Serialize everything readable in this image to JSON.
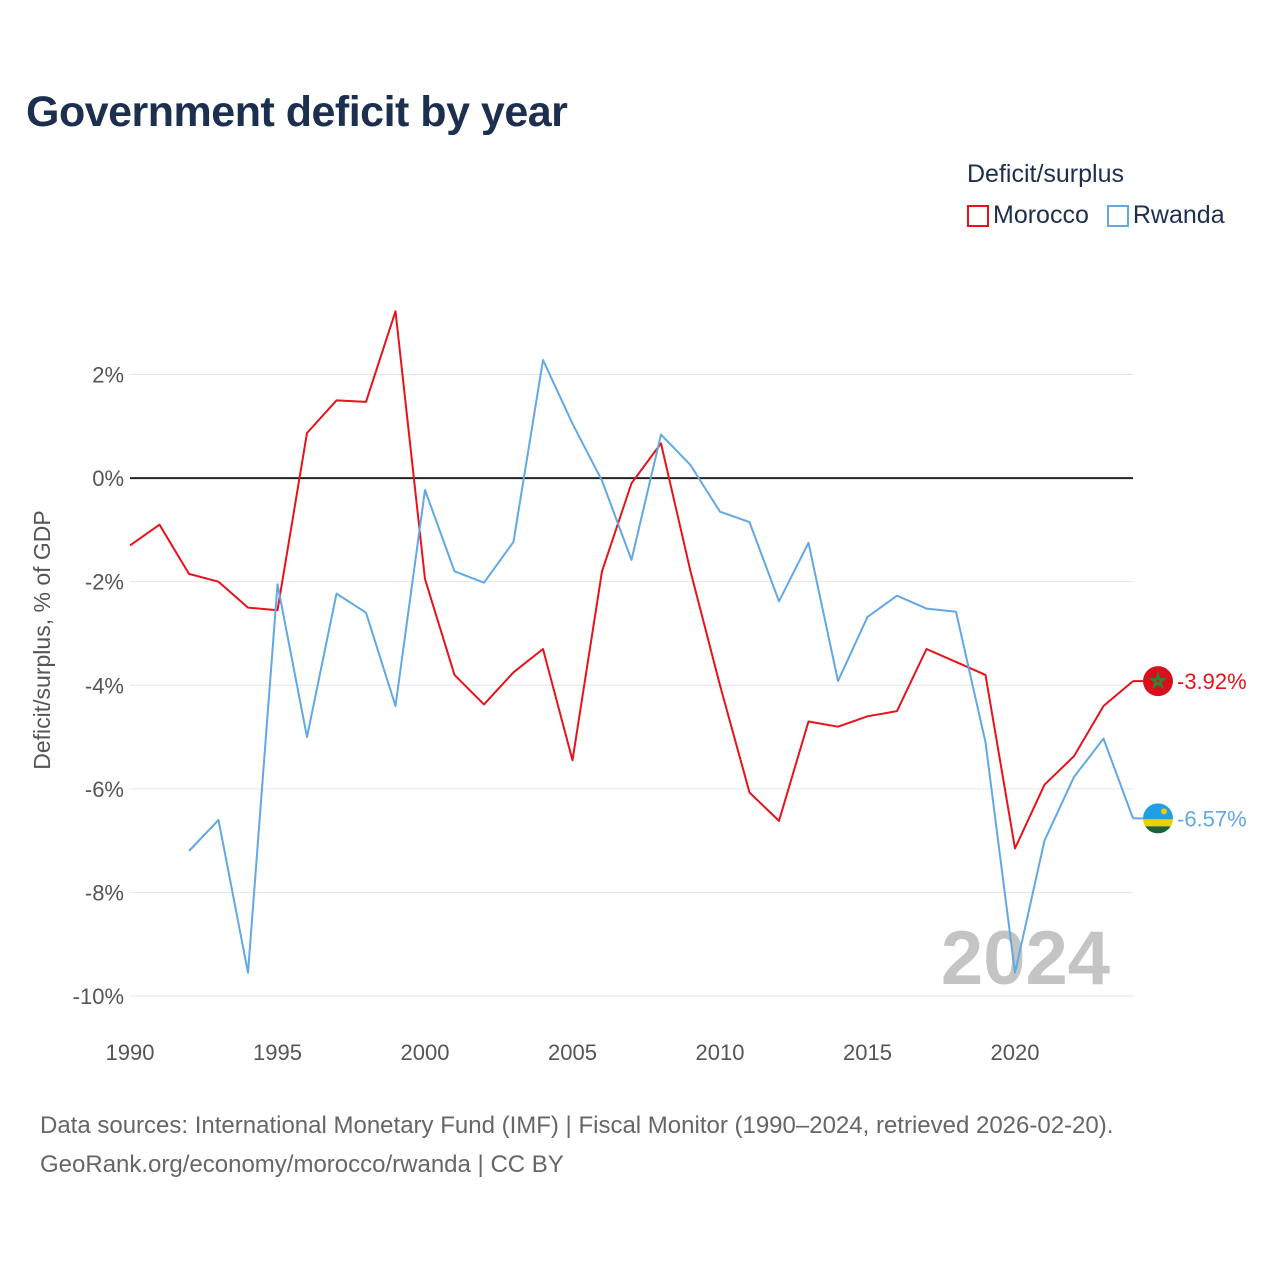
{
  "title": "Government deficit by year",
  "legend": {
    "title": "Deficit/surplus",
    "items": [
      {
        "label": "Morocco",
        "color": "#e8121a"
      },
      {
        "label": "Rwanda",
        "color": "#62a8e5"
      }
    ]
  },
  "footer": {
    "line1": "Data sources: International Monetary Fund (IMF) | Fiscal Monitor (1990–2024, retrieved 2026-02-20).",
    "line2": "GeoRank.org/economy/morocco/rwanda | CC BY"
  },
  "chart_data": {
    "type": "line",
    "title": "Government deficit by year",
    "xlabel": "",
    "ylabel": "Deficit/surplus, % of GDP",
    "xlim": [
      1990,
      2024
    ],
    "ylim": [
      -10,
      2
    ],
    "x_ticks": [
      1990,
      1995,
      2000,
      2005,
      2010,
      2015,
      2020
    ],
    "y_ticks": [
      2,
      0,
      -2,
      -4,
      -6,
      -8,
      -10
    ],
    "y_tick_labels": [
      "2%",
      "0%",
      "-2%",
      "-4%",
      "-6%",
      "-8%",
      "-10%"
    ],
    "year_watermark": "2024",
    "grid": true,
    "series": [
      {
        "name": "Morocco",
        "color": "#e8121a",
        "end_label": "-3.92%",
        "x": [
          1990,
          1991,
          1992,
          1993,
          1994,
          1995,
          1996,
          1997,
          1998,
          1999,
          2000,
          2001,
          2002,
          2003,
          2004,
          2005,
          2006,
          2007,
          2008,
          2009,
          2010,
          2011,
          2012,
          2013,
          2014,
          2015,
          2016,
          2017,
          2018,
          2019,
          2020,
          2021,
          2022,
          2023,
          2024
        ],
        "values": [
          -1.3,
          -0.9,
          -1.85,
          -2.0,
          -2.5,
          -2.55,
          0.87,
          1.5,
          1.47,
          3.22,
          -1.95,
          -3.8,
          -4.37,
          -3.75,
          -3.3,
          -5.45,
          -1.8,
          -0.1,
          0.67,
          -1.8,
          -4.0,
          -6.07,
          -6.62,
          -4.7,
          -4.8,
          -4.6,
          -4.5,
          -3.3,
          -3.55,
          -3.8,
          -7.15,
          -5.92,
          -5.37,
          -4.4,
          -3.92
        ]
      },
      {
        "name": "Rwanda",
        "color": "#62a8e5",
        "end_label": "-6.57%",
        "x": [
          1992,
          1993,
          1994,
          1995,
          1996,
          1997,
          1998,
          1999,
          2000,
          2001,
          2002,
          2003,
          2004,
          2005,
          2006,
          2007,
          2008,
          2009,
          2010,
          2011,
          2012,
          2013,
          2014,
          2015,
          2016,
          2017,
          2018,
          2019,
          2020,
          2021,
          2022,
          2023,
          2024
        ],
        "values": [
          -7.2,
          -6.6,
          -9.55,
          -2.05,
          -5.0,
          -2.23,
          -2.6,
          -4.4,
          -0.23,
          -1.8,
          -2.02,
          -1.23,
          2.28,
          1.05,
          -0.05,
          -1.58,
          0.84,
          0.25,
          -0.65,
          -0.85,
          -2.38,
          -1.25,
          -3.92,
          -2.68,
          -2.27,
          -2.52,
          -2.58,
          -5.1,
          -9.55,
          -7.0,
          -5.77,
          -5.03,
          -6.57
        ]
      }
    ]
  }
}
